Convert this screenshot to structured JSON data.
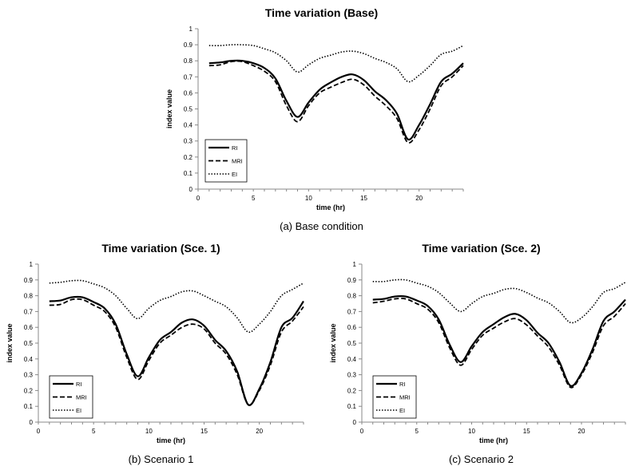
{
  "chart_data": [
    {
      "type": "line",
      "title": "Time variation (Base)",
      "xlabel": "time (hr)",
      "ylabel": "index value",
      "caption": "(a) Base condition",
      "xlim": [
        0,
        24
      ],
      "ylim": [
        0,
        1
      ],
      "xticks": [
        "0",
        "5",
        "10",
        "15",
        "20"
      ],
      "yticks": [
        "0",
        "0.1",
        "0.2",
        "0.3",
        "0.4",
        "0.5",
        "0.6",
        "0.7",
        "0.8",
        "0.9",
        "1"
      ],
      "grid": false,
      "legend_position": "bottom-left",
      "x": [
        1,
        2,
        3,
        4,
        5,
        6,
        7,
        8,
        9,
        10,
        11,
        12,
        13,
        14,
        15,
        16,
        17,
        18,
        19,
        20,
        21,
        22,
        23,
        24
      ],
      "series": [
        {
          "name": "RI",
          "style": "solid",
          "values": [
            0.785,
            0.79,
            0.8,
            0.8,
            0.785,
            0.755,
            0.69,
            0.55,
            0.45,
            0.54,
            0.62,
            0.665,
            0.7,
            0.715,
            0.68,
            0.61,
            0.555,
            0.47,
            0.31,
            0.4,
            0.53,
            0.67,
            0.72,
            0.785
          ]
        },
        {
          "name": "MRI",
          "style": "dashed",
          "values": [
            0.77,
            0.775,
            0.795,
            0.795,
            0.77,
            0.735,
            0.67,
            0.52,
            0.42,
            0.52,
            0.6,
            0.635,
            0.665,
            0.685,
            0.65,
            0.58,
            0.52,
            0.44,
            0.29,
            0.37,
            0.5,
            0.645,
            0.7,
            0.77
          ]
        },
        {
          "name": "EI",
          "style": "dotted",
          "values": [
            0.895,
            0.895,
            0.9,
            0.9,
            0.895,
            0.875,
            0.85,
            0.8,
            0.73,
            0.775,
            0.815,
            0.835,
            0.855,
            0.86,
            0.845,
            0.815,
            0.79,
            0.75,
            0.67,
            0.71,
            0.77,
            0.84,
            0.86,
            0.895
          ]
        }
      ]
    },
    {
      "type": "line",
      "title": "Time variation (Sce. 1)",
      "xlabel": "time (hr)",
      "ylabel": "index value",
      "caption": "(b) Scenario 1",
      "xlim": [
        0,
        24
      ],
      "ylim": [
        0,
        1
      ],
      "xticks": [
        "0",
        "5",
        "10",
        "15",
        "20"
      ],
      "yticks": [
        "0",
        "0.1",
        "0.2",
        "0.3",
        "0.4",
        "0.5",
        "0.6",
        "0.7",
        "0.8",
        "0.9",
        "1"
      ],
      "grid": false,
      "legend_position": "bottom-left",
      "x": [
        1,
        2,
        3,
        4,
        5,
        6,
        7,
        8,
        9,
        10,
        11,
        12,
        13,
        14,
        15,
        16,
        17,
        18,
        19,
        20,
        21,
        22,
        23,
        24
      ],
      "series": [
        {
          "name": "RI",
          "style": "solid",
          "values": [
            0.765,
            0.77,
            0.79,
            0.79,
            0.76,
            0.72,
            0.62,
            0.43,
            0.29,
            0.41,
            0.52,
            0.57,
            0.63,
            0.65,
            0.61,
            0.52,
            0.45,
            0.32,
            0.11,
            0.21,
            0.38,
            0.6,
            0.66,
            0.765
          ]
        },
        {
          "name": "MRI",
          "style": "dashed",
          "values": [
            0.74,
            0.745,
            0.775,
            0.775,
            0.74,
            0.7,
            0.6,
            0.41,
            0.27,
            0.39,
            0.5,
            0.55,
            0.6,
            0.62,
            0.59,
            0.5,
            0.43,
            0.3,
            0.11,
            0.2,
            0.36,
            0.57,
            0.64,
            0.73
          ]
        },
        {
          "name": "EI",
          "style": "dotted",
          "values": [
            0.88,
            0.885,
            0.895,
            0.895,
            0.875,
            0.85,
            0.8,
            0.72,
            0.655,
            0.72,
            0.77,
            0.795,
            0.825,
            0.83,
            0.8,
            0.765,
            0.73,
            0.66,
            0.57,
            0.62,
            0.7,
            0.8,
            0.84,
            0.88
          ]
        }
      ]
    },
    {
      "type": "line",
      "title": "Time variation (Sce. 2)",
      "xlabel": "time (hr)",
      "ylabel": "index value",
      "caption": "(c) Scenario 2",
      "xlim": [
        0,
        24
      ],
      "ylim": [
        0,
        1
      ],
      "xticks": [
        "0",
        "5",
        "10",
        "15",
        "20"
      ],
      "yticks": [
        "0",
        "0.1",
        "0.2",
        "0.3",
        "0.4",
        "0.5",
        "0.6",
        "0.7",
        "0.8",
        "0.9",
        "1"
      ],
      "grid": false,
      "legend_position": "bottom-left",
      "x": [
        1,
        2,
        3,
        4,
        5,
        6,
        7,
        8,
        9,
        10,
        11,
        12,
        13,
        14,
        15,
        16,
        17,
        18,
        19,
        20,
        21,
        22,
        23,
        24
      ],
      "series": [
        {
          "name": "RI",
          "style": "solid",
          "values": [
            0.775,
            0.78,
            0.795,
            0.795,
            0.77,
            0.735,
            0.65,
            0.49,
            0.38,
            0.48,
            0.57,
            0.62,
            0.665,
            0.685,
            0.645,
            0.565,
            0.5,
            0.38,
            0.23,
            0.31,
            0.46,
            0.64,
            0.7,
            0.775
          ]
        },
        {
          "name": "MRI",
          "style": "dashed",
          "values": [
            0.755,
            0.765,
            0.78,
            0.78,
            0.75,
            0.715,
            0.63,
            0.47,
            0.36,
            0.46,
            0.55,
            0.595,
            0.635,
            0.655,
            0.615,
            0.545,
            0.475,
            0.36,
            0.22,
            0.3,
            0.44,
            0.61,
            0.67,
            0.75
          ]
        },
        {
          "name": "EI",
          "style": "dotted",
          "values": [
            0.89,
            0.89,
            0.9,
            0.9,
            0.88,
            0.86,
            0.82,
            0.755,
            0.7,
            0.75,
            0.795,
            0.815,
            0.84,
            0.845,
            0.82,
            0.785,
            0.755,
            0.7,
            0.63,
            0.66,
            0.73,
            0.82,
            0.845,
            0.885
          ]
        }
      ]
    }
  ]
}
